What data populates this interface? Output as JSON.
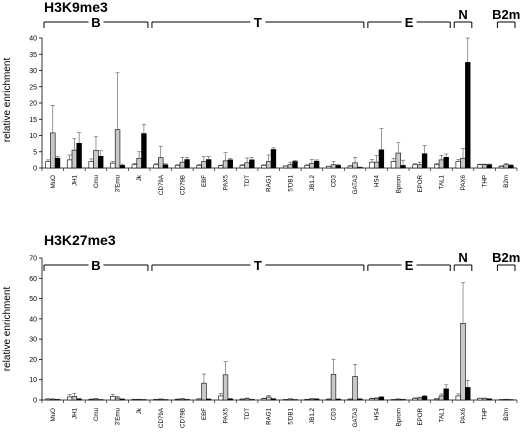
{
  "chart_data": [
    {
      "type": "bar",
      "title": "H3K9me3",
      "ylabel": "relative enrichment",
      "ylim": [
        0,
        40
      ],
      "yticks": [
        0,
        5,
        10,
        15,
        20,
        25,
        30,
        35,
        40
      ],
      "categories": [
        "MuO",
        "JH1",
        "Cmu",
        "3'Emu",
        "Jk",
        "CD79A",
        "CD79B",
        "EBF",
        "PAX5",
        "TDT",
        "RAG1",
        "5'DB1",
        "JB1.2",
        "CD3",
        "GATA3",
        "HS4",
        "Bprom",
        "EPOR",
        "TAL1",
        "PAX6",
        "THP",
        "B2m"
      ],
      "groups": [
        {
          "label": "B",
          "from": 0,
          "to": 4
        },
        {
          "label": "T",
          "from": 5,
          "to": 14
        },
        {
          "label": "E",
          "from": 15,
          "to": 18
        },
        {
          "label": "N",
          "from": 19,
          "to": 19
        },
        {
          "label": "B2m",
          "from": 21,
          "to": 21
        }
      ],
      "series": [
        {
          "color": "#ffffff",
          "values": [
            2,
            2.5,
            2,
            1.5,
            1,
            1,
            0.8,
            0.8,
            0.7,
            0.8,
            0.8,
            0.6,
            0.8,
            0.5,
            0.6,
            1.8,
            2,
            1,
            1,
            2,
            1,
            0.5
          ],
          "errors": [
            0.5,
            1.5,
            0.8,
            0.5,
            0.4,
            0.3,
            0.2,
            0.3,
            0.2,
            0.3,
            0.2,
            0.1,
            0.2,
            0.1,
            0.2,
            0.8,
            1,
            0.3,
            0.4,
            0.6,
            0.2,
            0.2
          ]
        },
        {
          "color": "#c8c8c8",
          "values": [
            10.8,
            5.5,
            5.4,
            11.8,
            3,
            3.2,
            1.8,
            2,
            2.2,
            1.6,
            2,
            1,
            1.4,
            1,
            1.6,
            1.8,
            4.6,
            1,
            2.5,
            3,
            1,
            1
          ],
          "errors": [
            8.5,
            3.5,
            4.2,
            17.5,
            2,
            3.5,
            1.5,
            1.5,
            2.5,
            1.5,
            2,
            0.8,
            1.2,
            1,
            1.7,
            2,
            3.2,
            0.8,
            1.4,
            3,
            0.2,
            0.4
          ]
        },
        {
          "color": "#000000",
          "values": [
            3,
            7.6,
            3.6,
            0.8,
            10.6,
            1,
            2.6,
            2.6,
            2.5,
            2.5,
            5.7,
            2,
            2.1,
            0.8,
            0.2,
            5.6,
            0.8,
            4.4,
            3.3,
            32.5,
            1,
            0.8
          ],
          "errors": [
            0.6,
            3.3,
            1.7,
            0.4,
            2.8,
            0.3,
            0.7,
            0.9,
            0.4,
            0.7,
            0.5,
            0.3,
            0.4,
            0.2,
            0.1,
            6.5,
            1.6,
            2.5,
            1,
            7.5,
            0.2,
            0.2
          ]
        }
      ]
    },
    {
      "type": "bar",
      "title": "H3K27me3",
      "ylabel": "relative enrichment",
      "ylim": [
        0,
        70
      ],
      "yticks": [
        0,
        10,
        20,
        30,
        40,
        50,
        60,
        70
      ],
      "categories": [
        "MuO",
        "JH1",
        "Cmu",
        "3'Emu",
        "Jk",
        "CD79A",
        "CD79B",
        "EBF",
        "PAX5",
        "TDT",
        "RAG1",
        "5'DB1",
        "JB1.2",
        "CD3",
        "GATA3",
        "HS4",
        "Bprom",
        "EPOR",
        "TAL1",
        "PAX6",
        "THP",
        "B2m"
      ],
      "groups": [
        {
          "label": "B",
          "from": 0,
          "to": 4
        },
        {
          "label": "T",
          "from": 5,
          "to": 14
        },
        {
          "label": "E",
          "from": 15,
          "to": 18
        },
        {
          "label": "N",
          "from": 19,
          "to": 19
        },
        {
          "label": "B2m",
          "from": 21,
          "to": 21
        }
      ],
      "series": [
        {
          "color": "#ffffff",
          "values": [
            0.5,
            1.5,
            0.3,
            1.8,
            0.3,
            0.3,
            0.3,
            0.5,
            2,
            0.4,
            0.6,
            0.2,
            0.3,
            0.4,
            0.4,
            0.6,
            0.2,
            0.8,
            0.5,
            2,
            0.8,
            0.2
          ],
          "errors": [
            0.2,
            1.2,
            0.2,
            1,
            0.1,
            0.1,
            0.2,
            0.2,
            1.2,
            0.2,
            0.3,
            0.1,
            0.1,
            0.2,
            0.2,
            0.3,
            0.1,
            0.3,
            0.3,
            1,
            0.2,
            0.1
          ]
        },
        {
          "color": "#c8c8c8",
          "values": [
            0.4,
            1.8,
            0.5,
            1,
            0.3,
            0.4,
            0.5,
            8.3,
            12.4,
            0.6,
            1.5,
            0.5,
            0.5,
            12.6,
            11.6,
            0.8,
            0.4,
            1,
            2,
            37.8,
            0.8,
            0.3
          ],
          "errors": [
            0.2,
            1.5,
            0.3,
            0.8,
            0.1,
            0.2,
            0.3,
            4.5,
            6.5,
            0.4,
            0.8,
            0.2,
            0.3,
            7.5,
            6,
            0.3,
            0.2,
            0.4,
            1,
            20,
            0.2,
            0.1
          ]
        },
        {
          "color": "#000000",
          "values": [
            0.3,
            0.5,
            0.2,
            0.4,
            0.2,
            0.2,
            0.3,
            0.4,
            0.5,
            0.3,
            0.5,
            0.2,
            0.5,
            0.4,
            0.5,
            1.4,
            0.3,
            1.8,
            5.5,
            6.2,
            0.5,
            0.2
          ],
          "errors": [
            0.1,
            0.3,
            0.1,
            0.2,
            0.1,
            0.1,
            0.1,
            0.2,
            0.3,
            0.1,
            0.3,
            0.1,
            0.2,
            0.2,
            0.2,
            0.4,
            0.1,
            0.5,
            2,
            3.5,
            0.2,
            0.1
          ]
        }
      ]
    }
  ]
}
